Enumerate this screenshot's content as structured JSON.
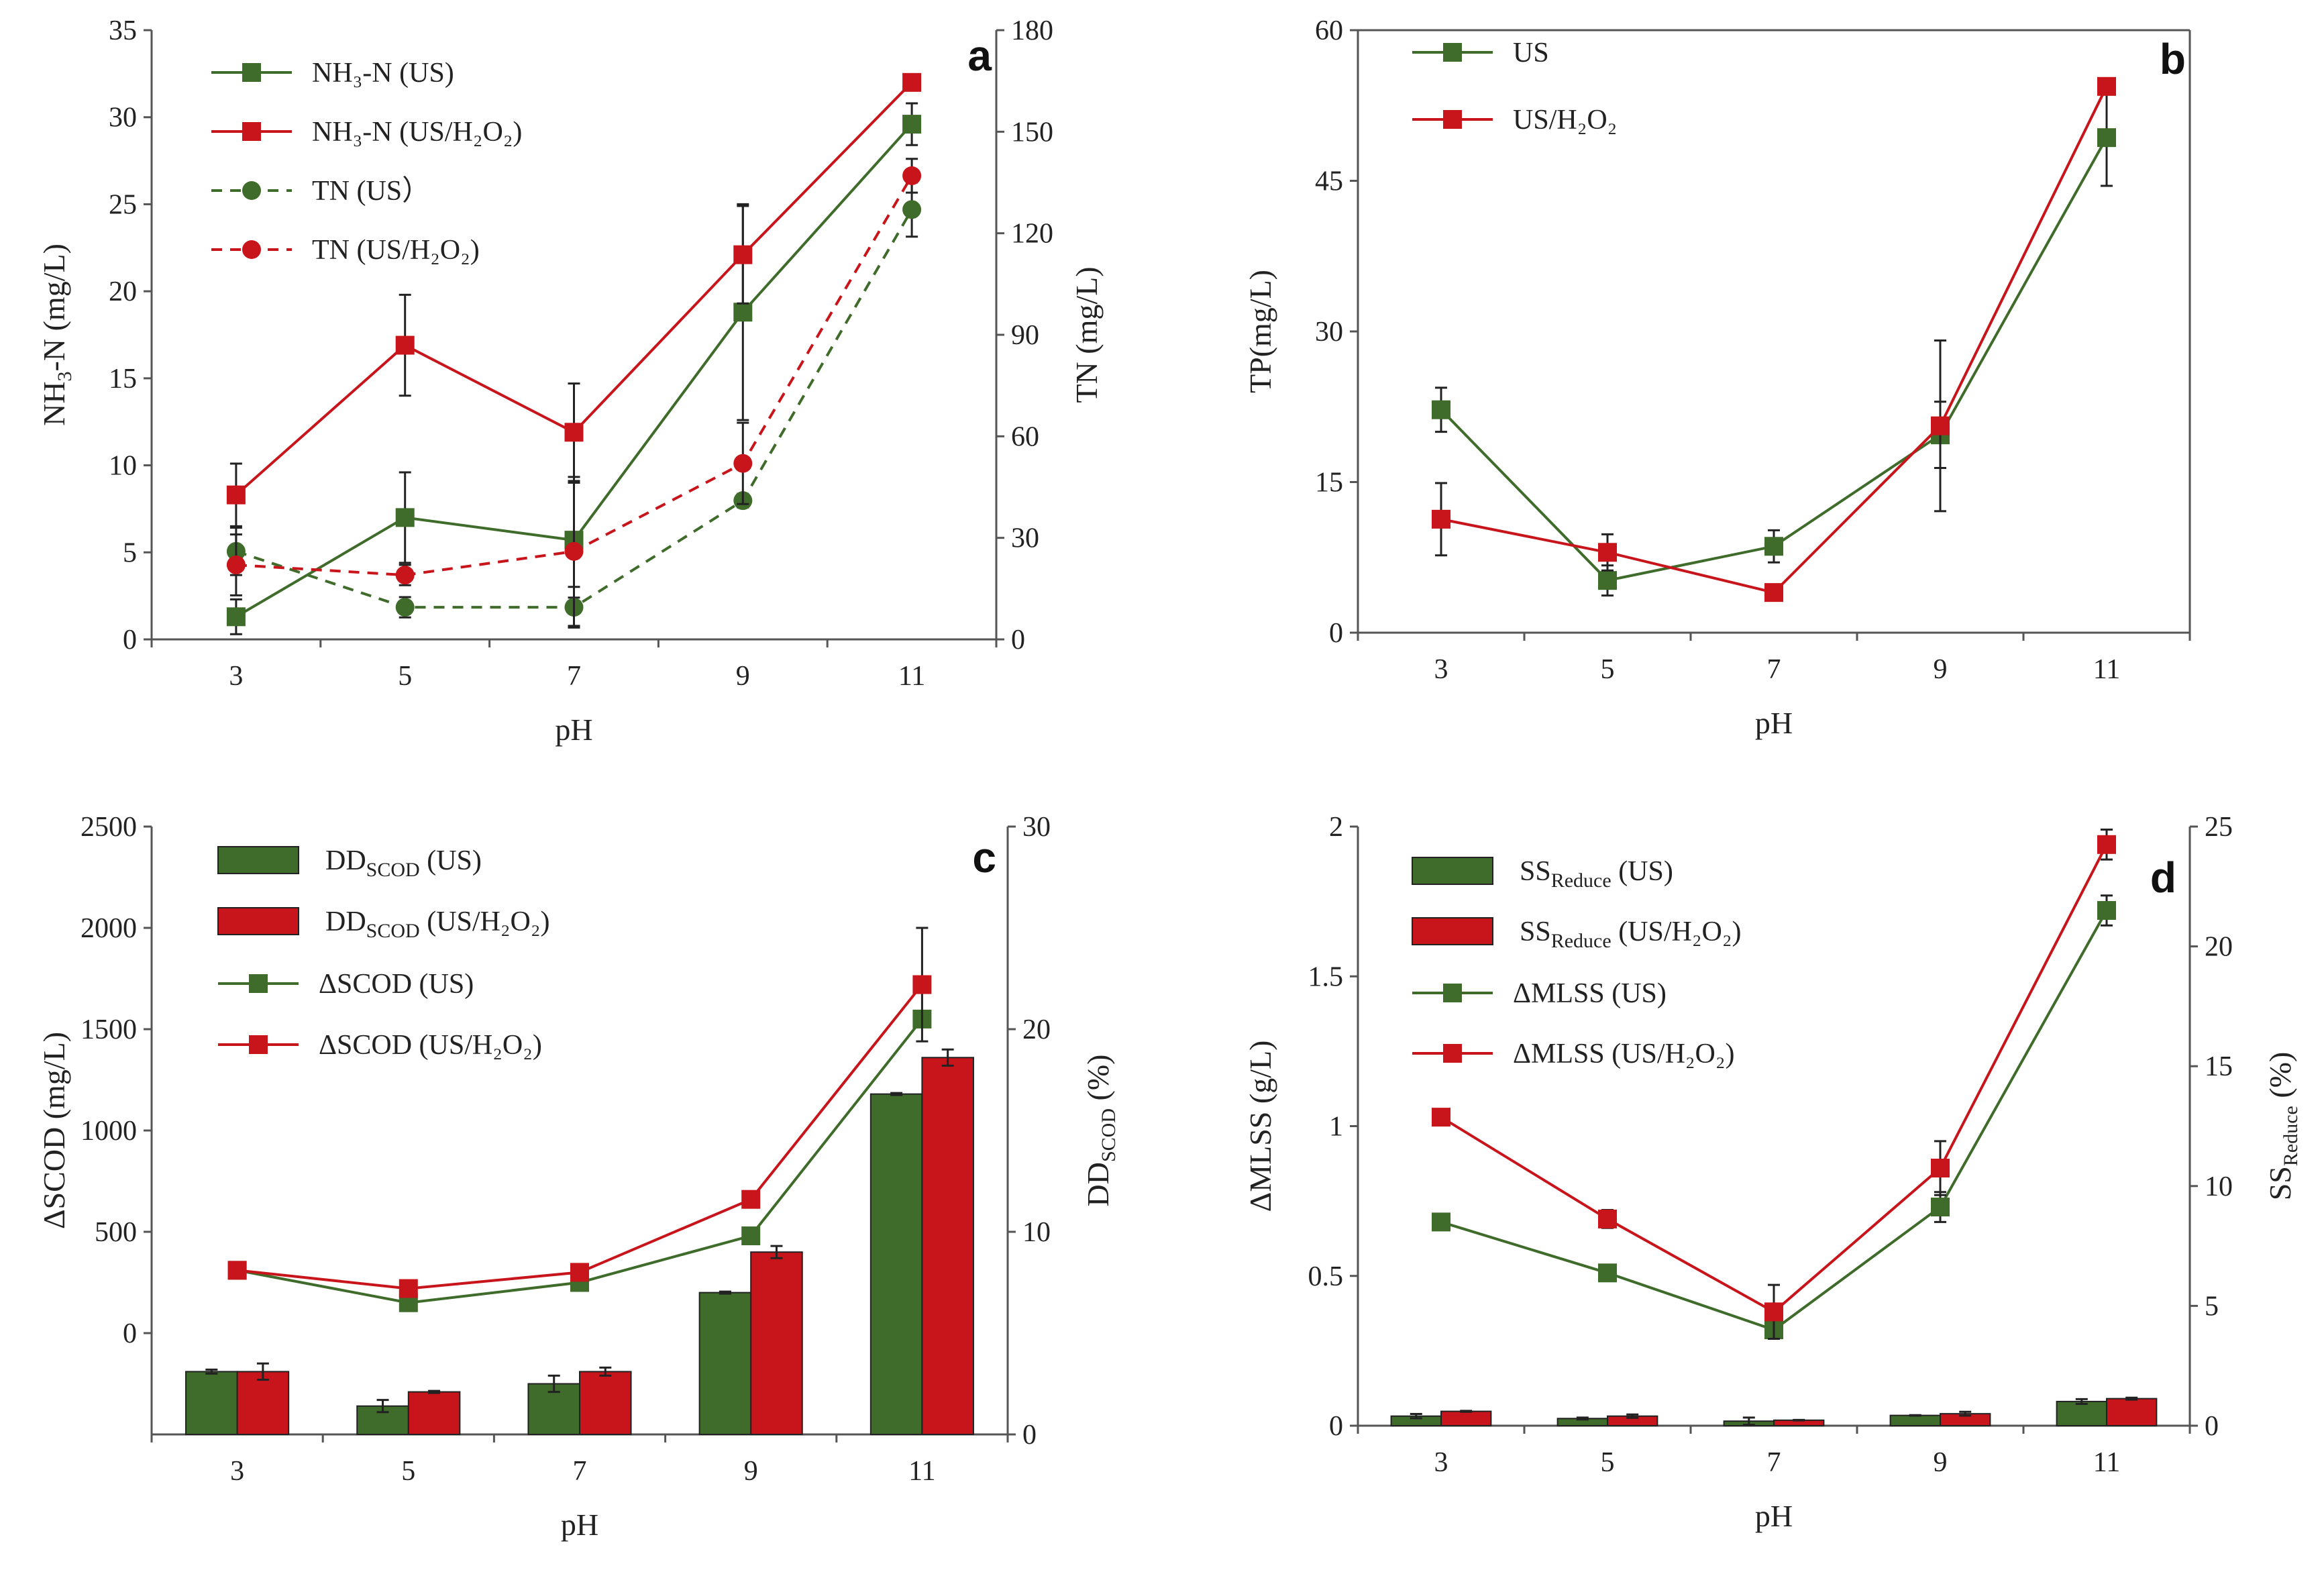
{
  "colors": {
    "green": "#3f6b2b",
    "red": "#c8151b",
    "axis": "#555555"
  },
  "chart_data": [
    {
      "id": "a",
      "type": "line",
      "panel_label": "a",
      "xlabel": "pH",
      "ylabel": {
        "main": "NH",
        "sub": "3",
        "rest": "-N  (mg/L)"
      },
      "y2label": "TN (mg/L)",
      "x": [
        3,
        5,
        7,
        9,
        11
      ],
      "ylim": [
        0,
        35
      ],
      "yticks": [
        0,
        5,
        10,
        15,
        20,
        25,
        30,
        35
      ],
      "y2lim": [
        0,
        180
      ],
      "y2ticks": [
        0,
        30,
        60,
        90,
        120,
        150,
        180
      ],
      "series": [
        {
          "name": "NH₃-N (US)",
          "axis": "left",
          "color": "green",
          "marker": "square",
          "dash": false,
          "values": [
            1.3,
            7.0,
            5.7,
            18.8,
            29.6
          ],
          "err": [
            1.0,
            2.6,
            3.3,
            6.2,
            1.2
          ]
        },
        {
          "name": "NH₃-N (US/H₂O₂)",
          "axis": "left",
          "color": "red",
          "marker": "square",
          "dash": false,
          "values": [
            8.3,
            16.9,
            11.9,
            22.1,
            32.0
          ],
          "err": [
            1.8,
            2.9,
            2.8,
            2.8,
            0.3
          ]
        },
        {
          "name": "TN (US）",
          "axis": "right",
          "color": "green",
          "marker": "circle",
          "dash": true,
          "values": [
            26,
            9.5,
            9.5,
            41,
            127
          ],
          "err": [
            7,
            3,
            6,
            2,
            8
          ]
        },
        {
          "name": "TN (US/H₂O₂)",
          "axis": "right",
          "color": "red",
          "marker": "circle",
          "dash": true,
          "values": [
            22,
            19,
            26,
            52,
            137
          ],
          "err": [
            9,
            3,
            22,
            12,
            5
          ]
        }
      ]
    },
    {
      "id": "b",
      "type": "line",
      "panel_label": "b",
      "xlabel": "pH",
      "ylabel": {
        "main": "TP(mg/L)",
        "sub": "",
        "rest": ""
      },
      "x": [
        3,
        5,
        7,
        9,
        11
      ],
      "ylim": [
        0,
        60
      ],
      "yticks": [
        0,
        15,
        30,
        45,
        60
      ],
      "series": [
        {
          "name": "US",
          "axis": "left",
          "color": "green",
          "marker": "square",
          "dash": false,
          "values": [
            22.2,
            5.2,
            8.6,
            19.7,
            49.3
          ],
          "err": [
            2.2,
            1.5,
            1.6,
            3.3,
            4.8
          ]
        },
        {
          "name": "US/H₂O₂",
          "axis": "left",
          "color": "red",
          "marker": "square",
          "dash": false,
          "values": [
            11.3,
            8.0,
            4.0,
            20.6,
            54.4
          ],
          "err": [
            3.6,
            1.8,
            0.5,
            8.5,
            0.4
          ]
        }
      ]
    },
    {
      "id": "c",
      "type": "bar+line",
      "panel_label": "c",
      "xlabel": "pH",
      "ylabel": {
        "main": "ΔSCOD (mg/L)",
        "sub": "",
        "rest": ""
      },
      "y2label": {
        "main": "DD",
        "sub": "SCOD",
        "rest": " (%)"
      },
      "categories": [
        "3",
        "5",
        "7",
        "9",
        "11"
      ],
      "ylim": [
        -500,
        2500
      ],
      "yticks": [
        0,
        500,
        1000,
        1500,
        2000,
        2500
      ],
      "y2lim": [
        0,
        30
      ],
      "y2ticks": [
        0,
        10,
        20,
        30
      ],
      "bars": [
        {
          "name": {
            "main": "DD",
            "sub": "SCOD",
            "rest": " (US)"
          },
          "color": "green",
          "values": [
            3.1,
            1.4,
            2.5,
            7.0,
            16.8
          ],
          "err": [
            0.1,
            0.3,
            0.4,
            0.05,
            0.05
          ]
        },
        {
          "name": {
            "main": "DD",
            "sub": "SCOD",
            "rest": " (US/H₂O₂)"
          },
          "color": "red",
          "values": [
            3.1,
            2.1,
            3.1,
            9.0,
            18.6
          ],
          "err": [
            0.4,
            0.05,
            0.2,
            0.3,
            0.4
          ]
        }
      ],
      "series": [
        {
          "name": "ΔSCOD (US)",
          "color": "green",
          "marker": "square",
          "values": [
            310,
            150,
            250,
            480,
            1550
          ],
          "err": [
            0,
            0,
            0,
            0,
            0
          ]
        },
        {
          "name": "ΔSCOD (US/H₂O₂)",
          "color": "red",
          "marker": "square",
          "values": [
            310,
            220,
            300,
            660,
            1720
          ],
          "err": [
            0,
            0,
            0,
            0,
            280
          ]
        }
      ]
    },
    {
      "id": "d",
      "type": "bar+line",
      "panel_label": "d",
      "xlabel": "pH",
      "ylabel": {
        "main": "ΔMLSS (g/L)",
        "sub": "",
        "rest": ""
      },
      "y2label": {
        "main": "SS",
        "sub": "Reduce",
        "rest": " (%)"
      },
      "categories": [
        "3",
        "5",
        "7",
        "9",
        "11"
      ],
      "ylim": [
        0,
        2
      ],
      "yticks": [
        0,
        0.5,
        1,
        1.5,
        2
      ],
      "y2lim": [
        0,
        25
      ],
      "y2ticks": [
        0,
        5,
        10,
        15,
        20,
        25
      ],
      "bars": [
        {
          "name": {
            "main": "SS",
            "sub": "Reduce",
            "rest": " (US)"
          },
          "color": "green",
          "values": [
            0.4,
            0.3,
            0.19,
            0.43,
            1.01
          ],
          "err": [
            0.09,
            0.04,
            0.15,
            0.01,
            0.1
          ]
        },
        {
          "name": {
            "main": "SS",
            "sub": "Reduce",
            "rest": " (US/H₂O₂)"
          },
          "color": "red",
          "values": [
            0.6,
            0.4,
            0.23,
            0.5,
            1.13
          ],
          "err": [
            0.02,
            0.07,
            0.01,
            0.08,
            0.04
          ]
        }
      ],
      "series": [
        {
          "name": "ΔMLSS (US)",
          "color": "green",
          "marker": "square",
          "values": [
            0.68,
            0.51,
            0.32,
            0.73,
            1.72
          ],
          "err": [
            0,
            0,
            0,
            0.05,
            0.05
          ]
        },
        {
          "name": "ΔMLSS (US/H₂O₂)",
          "color": "red",
          "marker": "square",
          "values": [
            1.03,
            0.69,
            0.38,
            0.86,
            1.94
          ],
          "err": [
            0,
            0.03,
            0.09,
            0.09,
            0.05
          ]
        }
      ]
    }
  ]
}
